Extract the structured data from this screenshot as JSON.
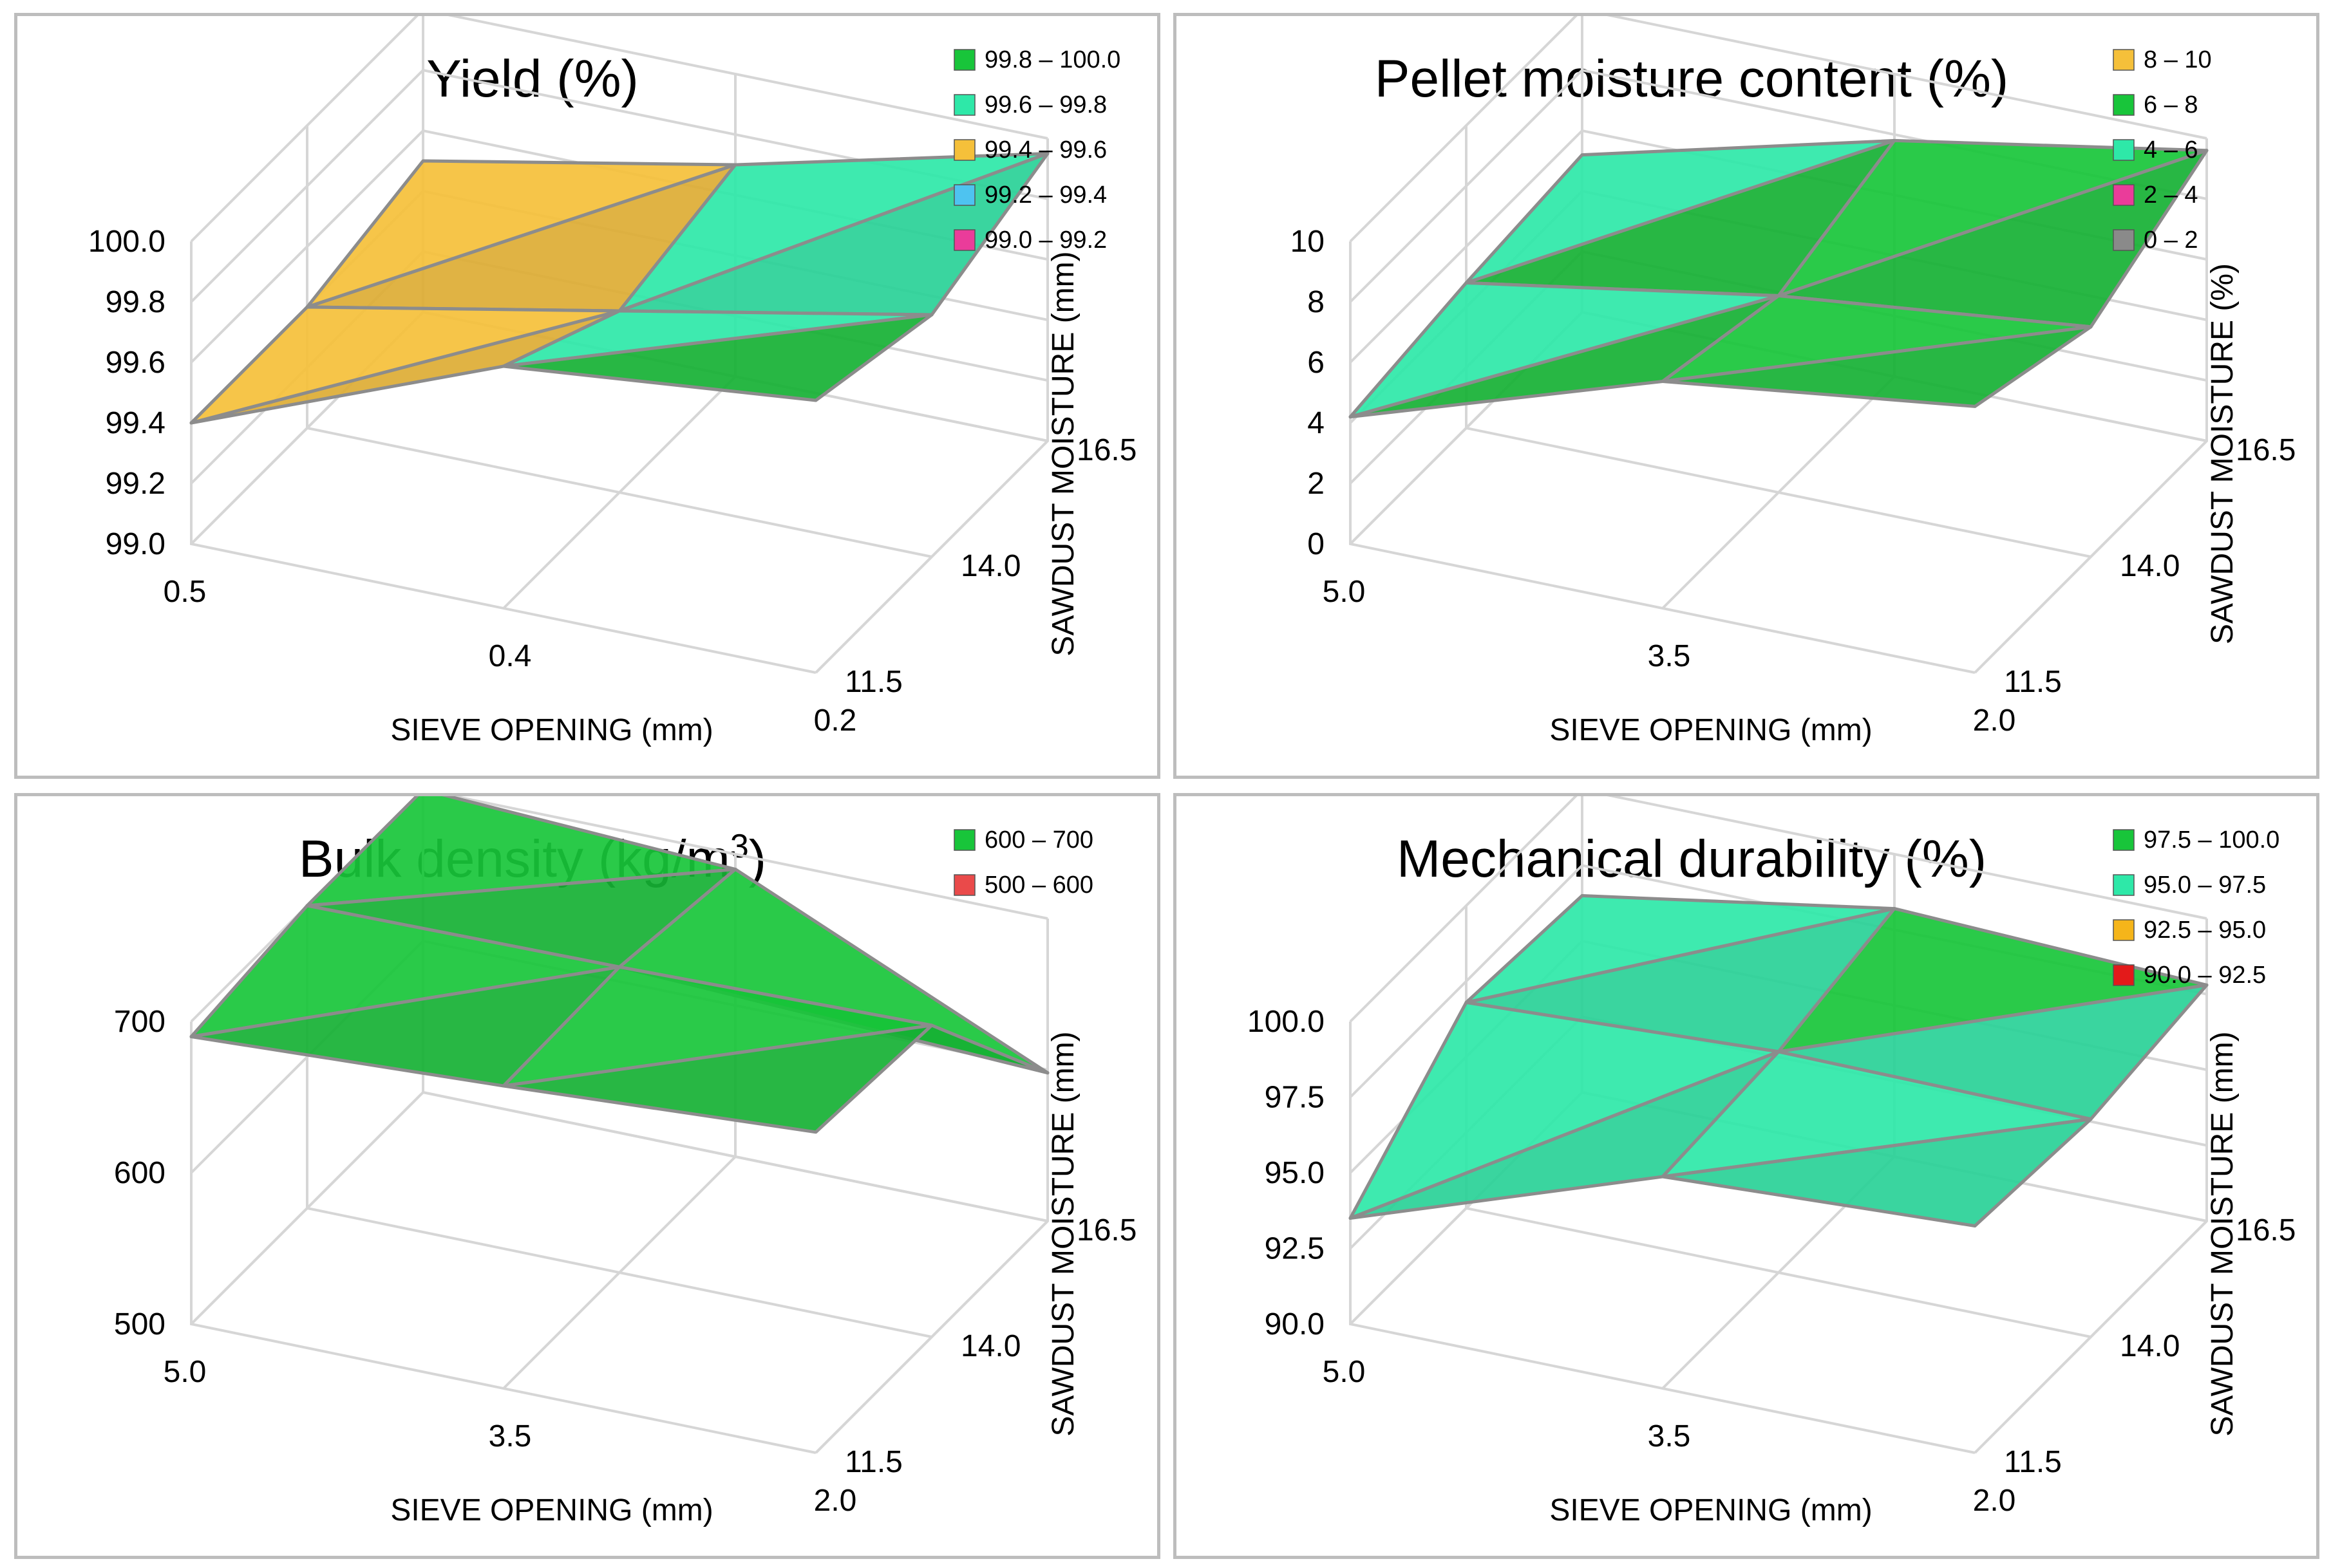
{
  "chart_data": [
    {
      "type": "surface3d",
      "title": "Yield (%)",
      "xlabel": "SIEVE OPENING (mm)",
      "ylabel": "SAWDUST MOISTURE (mm)",
      "x_ticks": [
        "0.5",
        "0.4",
        "0.2"
      ],
      "y_ticks": [
        "11.5",
        "14.0",
        "16.5"
      ],
      "z_ticks": [
        "99.0",
        "99.2",
        "99.4",
        "99.6",
        "99.8",
        "100.0"
      ],
      "zlim": [
        99.0,
        100.0
      ],
      "legend": [
        {
          "label": "99.8 – 100.0",
          "color": "#18c53a"
        },
        {
          "label": "99.6 – 99.8",
          "color": "#2ee8a8"
        },
        {
          "label": "99.4 – 99.6",
          "color": "#f5c03a"
        },
        {
          "label": "99.2 – 99.4",
          "color": "#4ec3f0"
        },
        {
          "label": "99.0 – 99.2",
          "color": "#ea3c9a"
        }
      ],
      "values": [
        [
          99.4,
          99.8,
          99.9
        ],
        [
          99.4,
          99.6,
          99.8
        ],
        [
          99.5,
          99.7,
          99.95
        ]
      ]
    },
    {
      "type": "surface3d",
      "title": "Pellet moisture content (%)",
      "xlabel": "SIEVE OPENING (mm)",
      "ylabel": "SAWDUST MOISTURE (%)",
      "x_ticks": [
        "5.0",
        "3.5",
        "2.0"
      ],
      "y_ticks": [
        "11.5",
        "14.0",
        "16.5"
      ],
      "z_ticks": [
        "0",
        "2",
        "4",
        "6",
        "8",
        "10"
      ],
      "zlim": [
        0,
        10
      ],
      "legend": [
        {
          "label": "8 – 10",
          "color": "#f5c03a"
        },
        {
          "label": "6 – 8",
          "color": "#18c53a"
        },
        {
          "label": "4 – 6",
          "color": "#2ee8a8"
        },
        {
          "label": "2 – 4",
          "color": "#ea3c9a"
        },
        {
          "label": "0 – 2",
          "color": "#8a8a8a"
        }
      ],
      "values": [
        [
          4.2,
          7.5,
          8.8
        ],
        [
          4.8,
          6.5,
          7.6
        ],
        [
          5.2,
          7.8,
          9.6
        ]
      ]
    },
    {
      "type": "surface3d",
      "title": "Bulk density (kg/m",
      "title_sup": "3",
      "title_end": ")",
      "xlabel": "SIEVE OPENING (mm)",
      "ylabel": "SAWDUST MOISTURE (mm)",
      "x_ticks": [
        "5.0",
        "3.5",
        "2.0"
      ],
      "y_ticks": [
        "11.5",
        "14.0",
        "16.5"
      ],
      "z_ticks": [
        "500",
        "600",
        "700"
      ],
      "zlim": [
        500,
        700
      ],
      "legend": [
        {
          "label": "600 – 700",
          "color": "#18c53a"
        },
        {
          "label": "500 – 600",
          "color": "#ea4a4a"
        }
      ],
      "values": [
        [
          690,
          700,
          712
        ],
        [
          700,
          702,
          706
        ],
        [
          700,
          690,
          598
        ]
      ]
    },
    {
      "type": "surface3d",
      "title": "Mechanical durability (%)",
      "xlabel": "SIEVE OPENING (mm)",
      "ylabel": "SAWDUST MOISTURE (mm)",
      "x_ticks": [
        "5.0",
        "3.5",
        "2.0"
      ],
      "y_ticks": [
        "11.5",
        "14.0",
        "16.5"
      ],
      "z_ticks": [
        "90.0",
        "92.5",
        "95.0",
        "97.5",
        "100.0"
      ],
      "zlim": [
        90,
        100
      ],
      "legend": [
        {
          "label": "97.5 – 100.0",
          "color": "#18c53a"
        },
        {
          "label": "95.0 – 97.5",
          "color": "#2ee8a8"
        },
        {
          "label": "92.5 – 95.0",
          "color": "#f5b51a"
        },
        {
          "label": "90.0 – 92.5",
          "color": "#e31a1a"
        }
      ],
      "values": [
        [
          93.5,
          97.0,
          97.5
        ],
        [
          96.8,
          97.3,
          97.2
        ],
        [
          96.5,
          98.2,
          97.8
        ]
      ]
    }
  ]
}
